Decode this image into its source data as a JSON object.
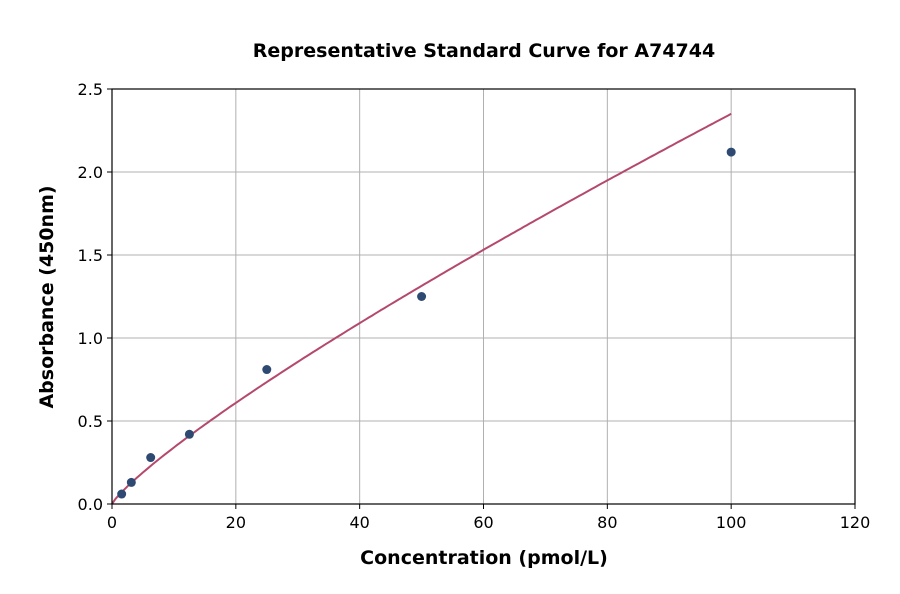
{
  "chart_data": {
    "type": "scatter",
    "title": "Representative Standard Curve for A74744",
    "xlabel": "Concentration (pmol/L)",
    "ylabel": "Absorbance (450nm)",
    "xlim": [
      0,
      120
    ],
    "ylim": [
      0,
      2.5
    ],
    "xticks": [
      "0",
      "20",
      "40",
      "60",
      "80",
      "100",
      "120"
    ],
    "yticks": [
      "0.0",
      "0.5",
      "1.0",
      "1.5",
      "2.0",
      "2.5"
    ],
    "grid": true,
    "points": {
      "x": [
        1.5625,
        3.125,
        6.25,
        12.5,
        25,
        50,
        100
      ],
      "y": [
        0.06,
        0.13,
        0.28,
        0.42,
        0.81,
        1.25,
        2.12
      ]
    },
    "fit_curve": true,
    "colors": {
      "points": "#2e4a72",
      "curve": "#b5496c"
    }
  }
}
